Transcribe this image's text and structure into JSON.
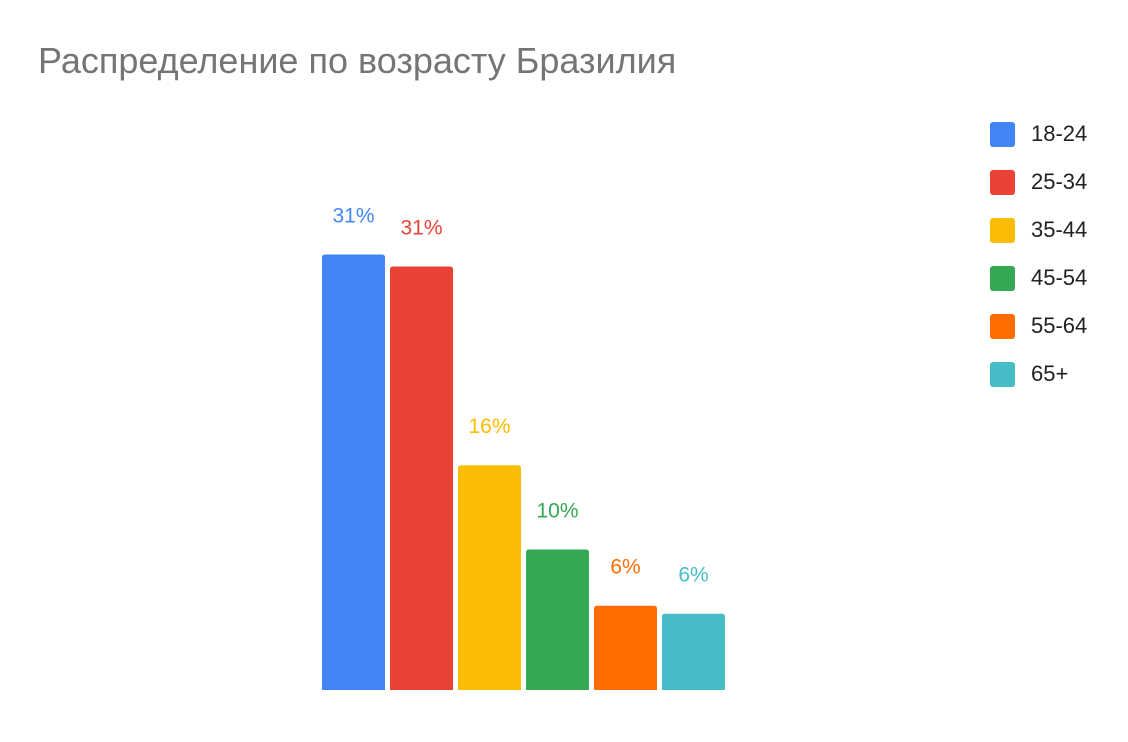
{
  "chart_data": {
    "type": "bar",
    "title": "Распределение по возрасту Бразилия",
    "categories": [
      "18-24",
      "25-34",
      "35-44",
      "45-54",
      "55-64",
      "65+"
    ],
    "values": [
      31,
      31,
      16,
      10,
      6,
      6
    ],
    "data_labels": [
      "31%",
      "31%",
      "16%",
      "10%",
      "6%",
      "6%"
    ],
    "colors": [
      "#4285F4",
      "#EA4335",
      "#FBBC04",
      "#34A853",
      "#FF6D01",
      "#46BDC6"
    ],
    "xlabel": "",
    "ylabel": "",
    "unit": "%",
    "grid": false,
    "legend_position": "top-right",
    "legend": [
      {
        "label": "18-24",
        "color": "#4285F4"
      },
      {
        "label": "25-34",
        "color": "#EA4335"
      },
      {
        "label": "35-44",
        "color": "#FBBC04"
      },
      {
        "label": "45-54",
        "color": "#34A853"
      },
      {
        "label": "55-64",
        "color": "#FF6D01"
      },
      {
        "label": "65+",
        "color": "#46BDC6"
      }
    ]
  }
}
